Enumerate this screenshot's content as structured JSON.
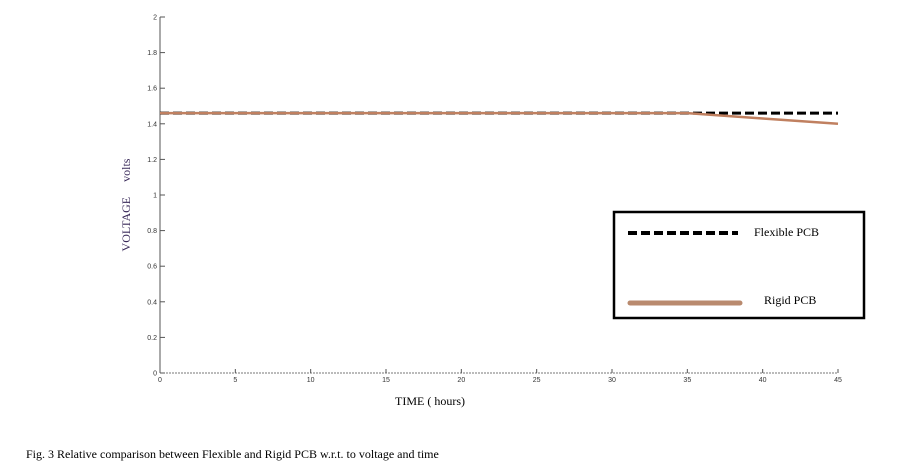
{
  "chart_data": {
    "type": "line",
    "title": "",
    "xlabel": "TIME   ( hours)",
    "ylabel": "VOLTAGE     volts",
    "xlim": [
      0,
      45
    ],
    "ylim": [
      0,
      2
    ],
    "x_ticks": [
      0,
      5,
      10,
      15,
      20,
      25,
      30,
      35,
      40,
      45
    ],
    "y_ticks": [
      0,
      0.2,
      0.4,
      0.6,
      0.8,
      1,
      1.2,
      1.4,
      1.6,
      1.8,
      2
    ],
    "grid": false,
    "legend_position": "right",
    "series": [
      {
        "name": "Flexible PCB",
        "color": "#000000",
        "style": "dashed",
        "x": [
          0,
          5,
          10,
          15,
          20,
          25,
          30,
          35,
          40,
          45
        ],
        "y": [
          1.46,
          1.46,
          1.46,
          1.46,
          1.46,
          1.46,
          1.46,
          1.46,
          1.46,
          1.46
        ]
      },
      {
        "name": "Rigid PCB",
        "color": "#c08060",
        "style": "solid",
        "x": [
          0,
          5,
          10,
          15,
          20,
          25,
          30,
          35,
          40,
          45
        ],
        "y": [
          1.46,
          1.46,
          1.46,
          1.46,
          1.46,
          1.46,
          1.46,
          1.46,
          1.43,
          1.4
        ]
      }
    ]
  },
  "caption": "Fig. 3 Relative comparison between Flexible and Rigid PCB w.r.t. to voltage and time"
}
